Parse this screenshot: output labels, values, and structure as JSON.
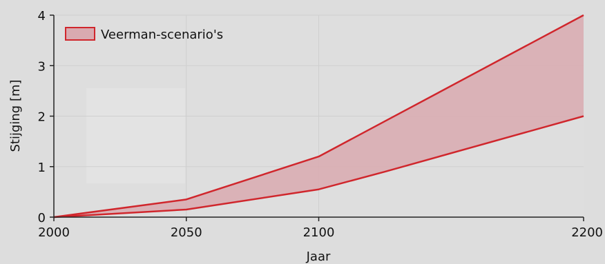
{
  "chart_data": {
    "type": "area",
    "title": "",
    "xlabel": "Jaar",
    "ylabel": "Stijging [m]",
    "xlim": [
      2000,
      2200
    ],
    "ylim": [
      0,
      4
    ],
    "x_ticks": [
      2000,
      2050,
      2100,
      2200
    ],
    "x_tick_labels": [
      "2000",
      "2050",
      "2100",
      "2200"
    ],
    "y_ticks": [
      0,
      1,
      2,
      3,
      4
    ],
    "y_tick_labels": [
      "0",
      "1",
      "2",
      "3",
      "4"
    ],
    "grid": true,
    "legend_position": "top-left",
    "series": [
      {
        "name": "Veerman-scenario's",
        "kind": "band",
        "x": [
          2000,
          2050,
          2100,
          2125,
          2200
        ],
        "upper": [
          0,
          0.35,
          1.2,
          1.9,
          4.0
        ],
        "lower": [
          0,
          0.15,
          0.55,
          0.9,
          2.0
        ],
        "line_color": "#d0262c",
        "fill_color": "#d9aab0"
      }
    ]
  }
}
